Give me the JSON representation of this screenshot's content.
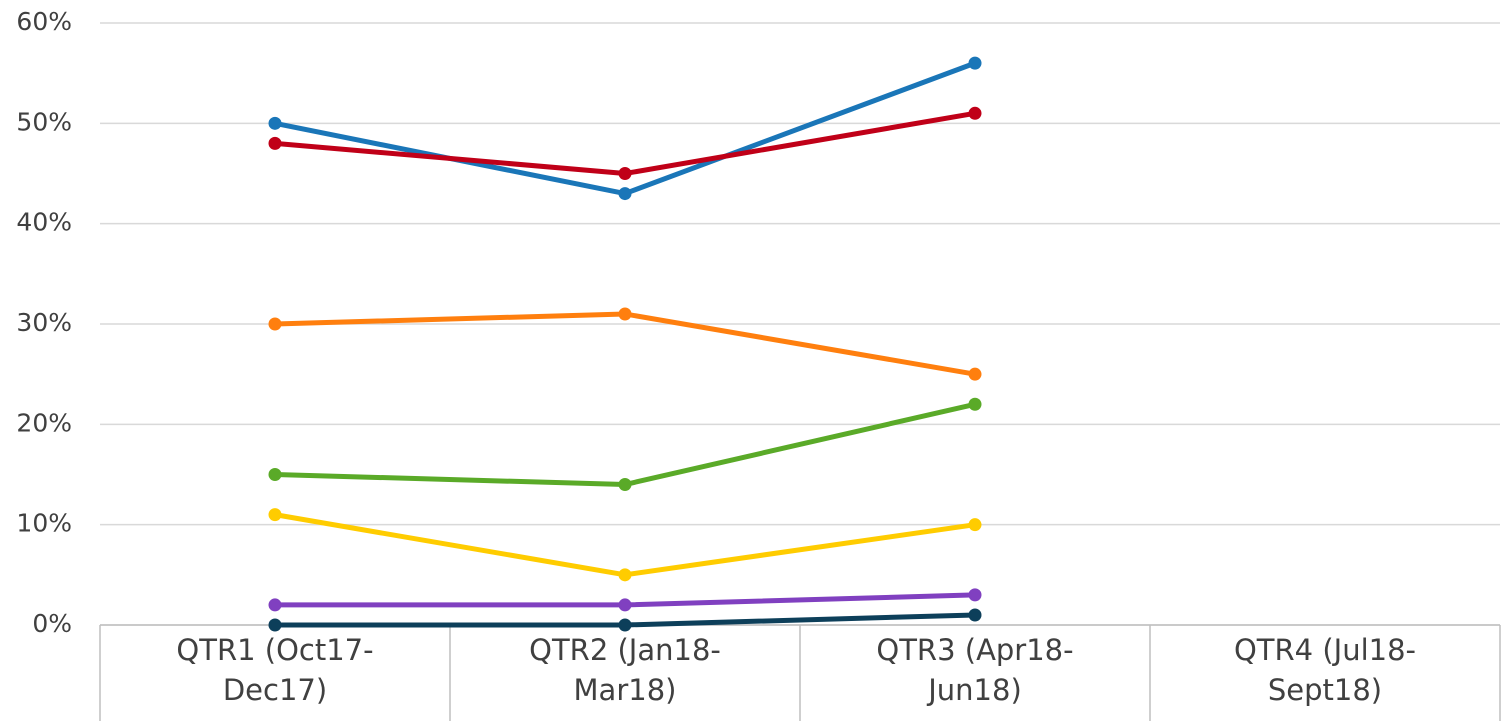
{
  "chart_data": {
    "type": "line",
    "categories": [
      "QTR1 (Oct17-Dec17)",
      "QTR2 (Jan18-Mar18)",
      "QTR3 (Apr18-Jun18)",
      "QTR4 (Jul18-Sept18)"
    ],
    "series": [
      {
        "color": "#1a76b8",
        "values": [
          50,
          43,
          56,
          null
        ]
      },
      {
        "color": "#c00018",
        "values": [
          48,
          45,
          51,
          null
        ]
      },
      {
        "color": "#ff7f0e",
        "values": [
          30,
          31,
          25,
          null
        ]
      },
      {
        "color": "#5aaa28",
        "values": [
          15,
          14,
          22,
          null
        ]
      },
      {
        "color": "#ffcc00",
        "values": [
          11,
          5,
          10,
          null
        ]
      },
      {
        "color": "#8040c0",
        "values": [
          2,
          2,
          3,
          null
        ]
      },
      {
        "color": "#0d3f5a",
        "values": [
          0,
          0,
          1,
          null
        ]
      }
    ],
    "ylim": [
      0,
      60
    ],
    "yticks": [
      {
        "value": 0,
        "label": "0%"
      },
      {
        "value": 10,
        "label": "10%"
      },
      {
        "value": 20,
        "label": "20%"
      },
      {
        "value": 30,
        "label": "30%"
      },
      {
        "value": 40,
        "label": "40%"
      },
      {
        "value": 50,
        "label": "50%"
      },
      {
        "value": 60,
        "label": "60%"
      }
    ],
    "grid": true
  }
}
